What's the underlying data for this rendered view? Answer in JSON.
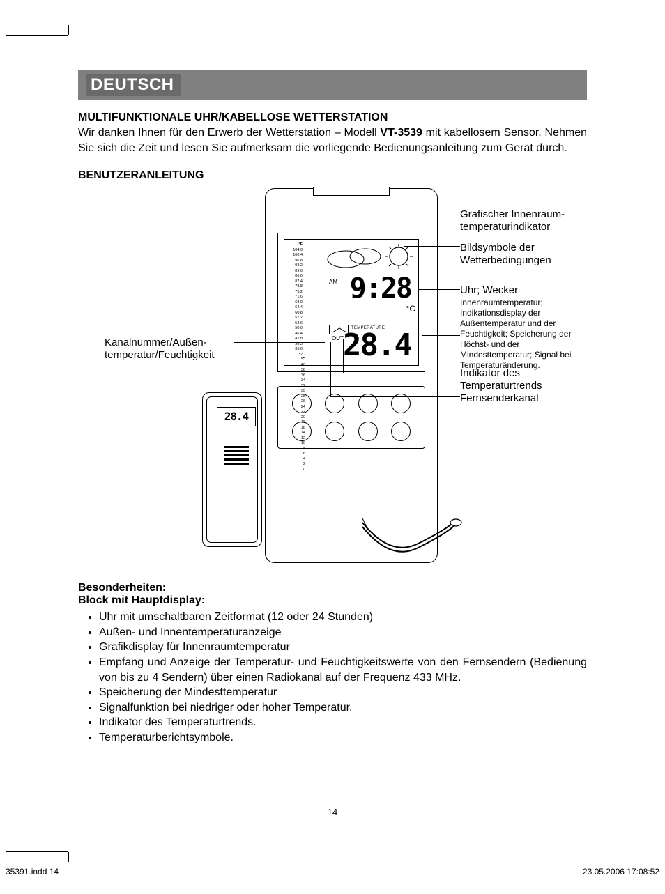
{
  "lang_banner": "DEUTSCH",
  "title": "MULTIFUNKTIONALE UHR/KABELLOSE WETTERSTATION",
  "intro": "Wir danken Ihnen für den Erwerb der Wetterstation – Modell VT-3539 mit kabellosem Sensor. Nehmen Sie sich die Zeit und lesen Sie aufmerksam die vorliegende Bedienungsanleitung zum Gerät durch.",
  "model_bold": "VT-3539",
  "subtitle": "BENUTZERANLEITUNG",
  "labels": {
    "grafischer": "Grafischer Innenraum-temperaturindikator",
    "bildsymbole": "Bildsymbole der Wetterbedingungen",
    "uhr": "Uhr; Wecker",
    "innenraum": "Innenraumtemperatur; Indikationsdisplay der Außentemperatur und der Feuchtigkeit; Speicherung der Höchst- und der Mindesttemperatur; Signal bei Temperaturänderung.",
    "indikator": "Indikator des Temperaturtrends",
    "fernsender": "Fernsenderkanal",
    "kanal": "Kanalnummer/Außen-temperatur/Feuchtigkeit"
  },
  "lcd": {
    "time": "9:28",
    "am": "AM",
    "temp": "28.4",
    "deg": "°C",
    "out": "OUT",
    "temperature_word": "TEMPERATURE",
    "f_header": "°F",
    "c_header": "°C",
    "f_scale": [
      "104.0",
      "100.4",
      "96.8",
      "93.2",
      "89.6",
      "86.0",
      "82.4",
      "78.8",
      "75.2",
      "71.6",
      "68.0",
      "64.4",
      "60.8",
      "57.2",
      "53.6",
      "50.0",
      "46.4",
      "42.8",
      "39.2",
      "35.6",
      "32"
    ],
    "c_scale": [
      "40",
      "38",
      "36",
      "34",
      "32",
      "30",
      "28",
      "26",
      "24",
      "22",
      "20",
      "18",
      "16",
      "14",
      "12",
      "10",
      "8",
      "6",
      "4",
      "2",
      "0"
    ]
  },
  "sensor_temp": "28.4",
  "features_head": "Besonderheiten:",
  "features_sub": "Block mit Hauptdisplay:",
  "features": [
    "Uhr mit umschaltbaren Zeitformat (12 oder 24 Stunden)",
    "Außen- und Innentemperaturanzeige",
    "Grafikdisplay für Innenraumtemperatur",
    "Empfang und Anzeige der Temperatur- und Feuchtigkeitswerte von den Fernsendern (Bedienung von bis zu 4 Sendern) über einen Radiokanal auf der Frequenz 433 MHz.",
    "Speicherung der Mindesttemperatur",
    "Signalfunktion bei niedriger oder hoher Temperatur.",
    "Indikator des Temperaturtrends.",
    "Temperaturberichtsymbole."
  ],
  "page_number": "14",
  "footer_left": "35391.indd   14",
  "footer_right": "23.05.2006   17:08:52"
}
